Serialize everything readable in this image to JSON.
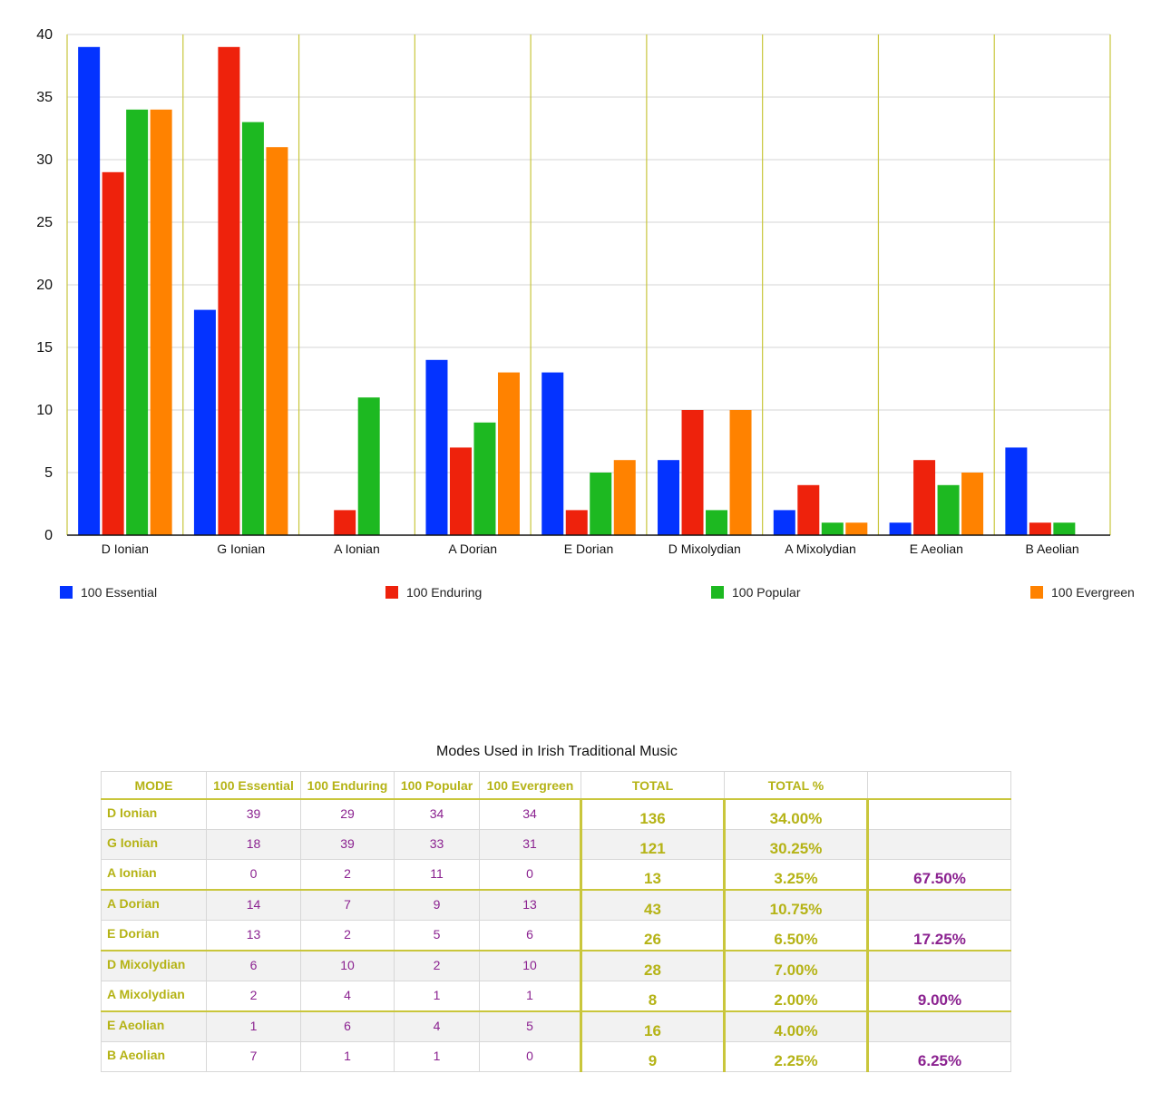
{
  "chart_data": {
    "type": "bar",
    "categories": [
      "D Ionian",
      "G Ionian",
      "A Ionian",
      "A Dorian",
      "E Dorian",
      "D Mixolydian",
      "A Mixolydian",
      "E Aeolian",
      "B Aeolian"
    ],
    "series": [
      {
        "name": "100 Essential",
        "color": "#0433ff",
        "values": [
          39,
          18,
          0,
          14,
          13,
          6,
          2,
          1,
          7
        ]
      },
      {
        "name": "100 Enduring",
        "color": "#ee220c",
        "values": [
          29,
          39,
          2,
          7,
          2,
          10,
          4,
          6,
          1
        ]
      },
      {
        "name": "100 Popular",
        "color": "#1db921",
        "values": [
          34,
          33,
          11,
          9,
          5,
          2,
          1,
          4,
          1
        ]
      },
      {
        "name": "100 Evergreen",
        "color": "#ff8200",
        "values": [
          34,
          31,
          0,
          13,
          6,
          10,
          1,
          5,
          0
        ]
      }
    ],
    "yticks": [
      0,
      5,
      10,
      15,
      20,
      25,
      30,
      35,
      40
    ],
    "ylim": [
      0,
      40
    ],
    "grid": true,
    "legend_position": "bottom",
    "gridline_color": "#d4d4d4",
    "category_divider_color": "#c9c63c"
  },
  "table": {
    "title": "Modes Used in Irish Traditional Music",
    "headers": [
      "MODE",
      "100 Essential",
      "100 Enduring",
      "100 Popular",
      "100 Evergreen",
      "TOTAL",
      "TOTAL %",
      ""
    ],
    "rows": [
      {
        "mode": "D Ionian",
        "values": [
          "39",
          "29",
          "34",
          "34"
        ],
        "total": "136",
        "pct": "34.00%",
        "group": ""
      },
      {
        "mode": "G Ionian",
        "values": [
          "18",
          "39",
          "33",
          "31"
        ],
        "total": "121",
        "pct": "30.25%",
        "group": ""
      },
      {
        "mode": "A Ionian",
        "values": [
          "0",
          "2",
          "11",
          "0"
        ],
        "total": "13",
        "pct": "3.25%",
        "group": "67.50%"
      },
      {
        "mode": "A Dorian",
        "values": [
          "14",
          "7",
          "9",
          "13"
        ],
        "total": "43",
        "pct": "10.75%",
        "group": ""
      },
      {
        "mode": "E Dorian",
        "values": [
          "13",
          "2",
          "5",
          "6"
        ],
        "total": "26",
        "pct": "6.50%",
        "group": "17.25%"
      },
      {
        "mode": "D Mixolydian",
        "values": [
          "6",
          "10",
          "2",
          "10"
        ],
        "total": "28",
        "pct": "7.00%",
        "group": ""
      },
      {
        "mode": "A Mixolydian",
        "values": [
          "2",
          "4",
          "1",
          "1"
        ],
        "total": "8",
        "pct": "2.00%",
        "group": "9.00%"
      },
      {
        "mode": "E Aeolian",
        "values": [
          "1",
          "6",
          "4",
          "5"
        ],
        "total": "16",
        "pct": "4.00%",
        "group": ""
      },
      {
        "mode": "B Aeolian",
        "values": [
          "7",
          "1",
          "1",
          "0"
        ],
        "total": "9",
        "pct": "2.25%",
        "group": "6.25%"
      }
    ],
    "header_color": "#b5b316",
    "value_color": "#8b2290"
  }
}
